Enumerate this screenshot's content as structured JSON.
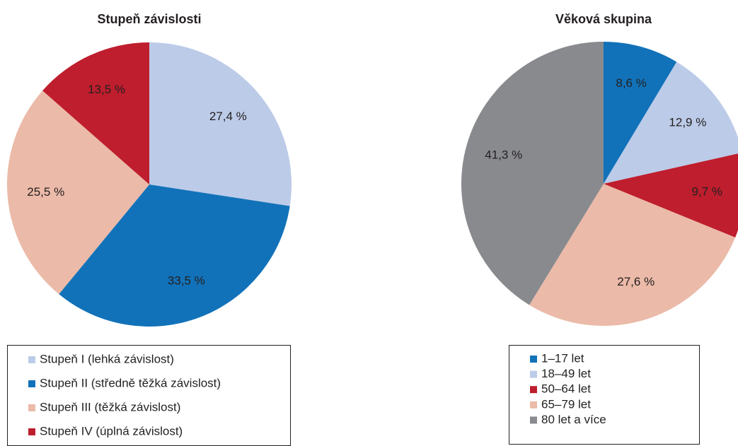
{
  "chart_data": [
    {
      "type": "pie",
      "title": "Stupeň závislosti",
      "categories": [
        "Stupeň I (lehká závislost)",
        "Stupeň II (středně těžká závislost)",
        "Stupeň III (těžká závislost)",
        "Stupeň IV (úplná závislost)"
      ],
      "values": [
        27.4,
        33.5,
        25.5,
        13.5
      ],
      "value_labels": [
        "27,4 %",
        "33,5 %",
        "25,5 %",
        "13,5 %"
      ],
      "colors": [
        "#bccbe8",
        "#1272b9",
        "#ebbaa8",
        "#be1e2d"
      ],
      "label_colors": [
        "#231f20",
        "#ffffff",
        "#231f20",
        "#ffffff"
      ],
      "legend": "bottom"
    },
    {
      "type": "pie",
      "title": "Věková skupina",
      "categories": [
        "1–17 let",
        "18–49 let",
        "50–64 let",
        "65–79 let",
        "80 let a více"
      ],
      "values": [
        8.6,
        12.9,
        9.7,
        27.6,
        41.3
      ],
      "value_labels": [
        "8,6 %",
        "12,9 %",
        "9,7 %",
        "27,6 %",
        "41,3 %"
      ],
      "colors": [
        "#1272b9",
        "#bccbe8",
        "#be1e2d",
        "#ebbaa8",
        "#888a8e"
      ],
      "label_colors": [
        "#ffffff",
        "#231f20",
        "#ffffff",
        "#231f20",
        "#ffffff"
      ],
      "legend": "bottom"
    }
  ]
}
